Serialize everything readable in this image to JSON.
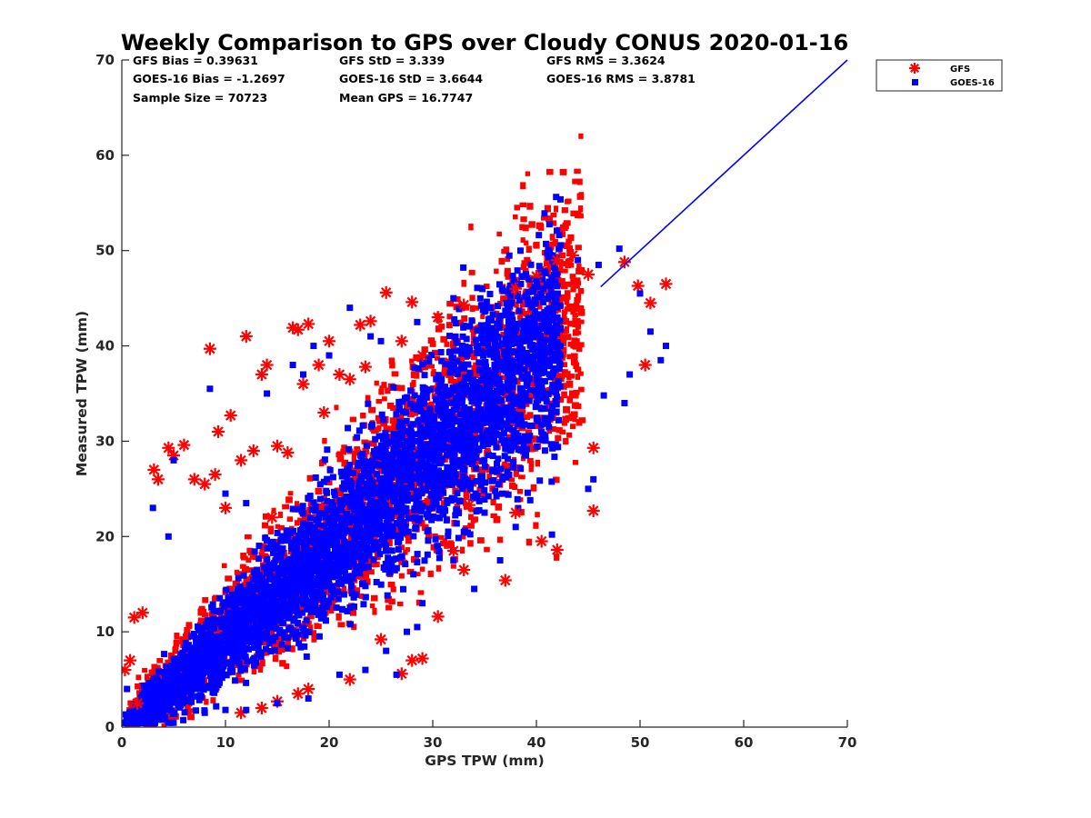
{
  "chart_data": {
    "type": "scatter",
    "title": "Weekly Comparison to GPS over Cloudy CONUS 2020-01-16",
    "xlabel": "GPS TPW (mm)",
    "ylabel": "Measured TPW (mm)",
    "xlim": [
      0,
      70
    ],
    "ylim": [
      0,
      70
    ],
    "xticks": [
      "0",
      "10",
      "20",
      "30",
      "40",
      "50",
      "60",
      "70"
    ],
    "yticks": [
      "0",
      "10",
      "20",
      "30",
      "40",
      "50",
      "60",
      "70"
    ],
    "grid": false,
    "legend_position": "outside top-right",
    "stats": [
      "GFS Bias = 0.39631",
      "GFS StD = 3.339",
      "GFS RMS = 3.3624",
      "GOES-16 Bias = -1.2697",
      "GOES-16 StD = 3.6644",
      "GOES-16 RMS = 3.8781",
      "Sample Size = 70723",
      "Mean GPS = 16.7747"
    ],
    "series": [
      {
        "name": "GFS",
        "marker": "asterisk",
        "color": "#ff0000",
        "points": [
          [
            0.3,
            6.0
          ],
          [
            0.8,
            7.0
          ],
          [
            1.2,
            11.5
          ],
          [
            1.5,
            2.5
          ],
          [
            2.0,
            12.0
          ],
          [
            3.1,
            27.0
          ],
          [
            3.5,
            26.0
          ],
          [
            4.5,
            29.3
          ],
          [
            5.0,
            28.5
          ],
          [
            6.0,
            29.6
          ],
          [
            7.0,
            26.0
          ],
          [
            8.0,
            25.5
          ],
          [
            8.5,
            39.7
          ],
          [
            9.0,
            26.5
          ],
          [
            9.3,
            31.0
          ],
          [
            10.0,
            23.0
          ],
          [
            10.5,
            32.7
          ],
          [
            11.5,
            28.0
          ],
          [
            12.0,
            41.0
          ],
          [
            12.7,
            29.0
          ],
          [
            13.5,
            37.0
          ],
          [
            14.0,
            38.0
          ],
          [
            14.5,
            22.0
          ],
          [
            15.0,
            29.5
          ],
          [
            16.0,
            28.8
          ],
          [
            16.5,
            41.9
          ],
          [
            17.0,
            41.7
          ],
          [
            17.5,
            36.0
          ],
          [
            18.0,
            42.3
          ],
          [
            19.0,
            38.0
          ],
          [
            19.5,
            33.0
          ],
          [
            20.0,
            40.5
          ],
          [
            21.0,
            37.0
          ],
          [
            22.0,
            36.5
          ],
          [
            23.0,
            42.2
          ],
          [
            23.5,
            37.8
          ],
          [
            24.0,
            42.6
          ],
          [
            25.5,
            45.6
          ],
          [
            27.0,
            40.5
          ],
          [
            28.0,
            44.6
          ],
          [
            29.0,
            39.0
          ],
          [
            30.5,
            43.0
          ],
          [
            33.0,
            44.3
          ],
          [
            38.0,
            46.0
          ],
          [
            40.0,
            47.3
          ],
          [
            42.0,
            49.0
          ],
          [
            43.5,
            49.5
          ],
          [
            45.0,
            47.5
          ],
          [
            48.5,
            48.8
          ],
          [
            49.8,
            46.3
          ],
          [
            50.5,
            38.0
          ],
          [
            51.0,
            44.5
          ],
          [
            52.5,
            46.5
          ],
          [
            45.5,
            29.3
          ],
          [
            45.5,
            22.7
          ],
          [
            42.0,
            18.6
          ],
          [
            40.5,
            19.5
          ],
          [
            38.0,
            22.5
          ],
          [
            37.0,
            15.4
          ],
          [
            33.0,
            16.5
          ],
          [
            32.0,
            18.5
          ],
          [
            30.5,
            11.6
          ],
          [
            28.0,
            7.0
          ],
          [
            29.0,
            7.2
          ],
          [
            27.0,
            5.6
          ],
          [
            25.0,
            9.2
          ],
          [
            22.0,
            5.0
          ],
          [
            18.0,
            4.0
          ],
          [
            15.0,
            2.7
          ],
          [
            13.5,
            2.0
          ],
          [
            11.5,
            1.5
          ],
          [
            17.0,
            3.5
          ],
          [
            33.5,
            23.3
          ]
        ]
      },
      {
        "name": "GOES-16",
        "marker": "square",
        "color": "#0000ff",
        "points": [
          [
            0.5,
            4.0
          ],
          [
            3.0,
            23.0
          ],
          [
            4.5,
            20.0
          ],
          [
            5.0,
            28.0
          ],
          [
            8.5,
            35.5
          ],
          [
            10.0,
            24.5
          ],
          [
            12.0,
            23.5
          ],
          [
            14.0,
            35.0
          ],
          [
            16.5,
            38.0
          ],
          [
            17.5,
            37.0
          ],
          [
            18.5,
            40.0
          ],
          [
            20.0,
            39.0
          ],
          [
            22.0,
            44.0
          ],
          [
            24.0,
            41.0
          ],
          [
            25.0,
            40.5
          ],
          [
            28.5,
            42.5
          ],
          [
            32.0,
            45.0
          ],
          [
            35.0,
            44.0
          ],
          [
            38.5,
            46.5
          ],
          [
            40.0,
            46.8
          ],
          [
            42.0,
            47.5
          ],
          [
            44.0,
            49.0
          ],
          [
            46.0,
            48.5
          ],
          [
            48.0,
            50.2
          ],
          [
            50.0,
            45.5
          ],
          [
            51.0,
            41.5
          ],
          [
            52.5,
            40.0
          ],
          [
            52.0,
            38.5
          ],
          [
            49.0,
            37.0
          ],
          [
            48.5,
            34.0
          ],
          [
            46.5,
            34.8
          ],
          [
            45.5,
            26.0
          ],
          [
            45.0,
            25.0
          ],
          [
            41.5,
            20.2
          ],
          [
            38.0,
            21.0
          ],
          [
            36.5,
            17.5
          ],
          [
            35.0,
            22.5
          ],
          [
            34.0,
            14.5
          ],
          [
            30.5,
            19.0
          ],
          [
            29.0,
            13.0
          ],
          [
            27.5,
            10.0
          ],
          [
            25.5,
            8.0
          ],
          [
            23.5,
            6.0
          ],
          [
            21.0,
            5.5
          ],
          [
            18.0,
            3.0
          ],
          [
            15.0,
            2.5
          ],
          [
            12.0,
            1.8
          ],
          [
            10.0,
            1.8
          ],
          [
            8.0,
            1.5
          ],
          [
            28.5,
            10.5
          ],
          [
            26.5,
            5.5
          ],
          [
            31.0,
            32.5
          ],
          [
            39.0,
            28.5
          ]
        ]
      }
    ],
    "reference_line": {
      "from": [
        46.2,
        46.2
      ],
      "to": [
        70,
        70
      ],
      "color": "#0000ff"
    }
  }
}
